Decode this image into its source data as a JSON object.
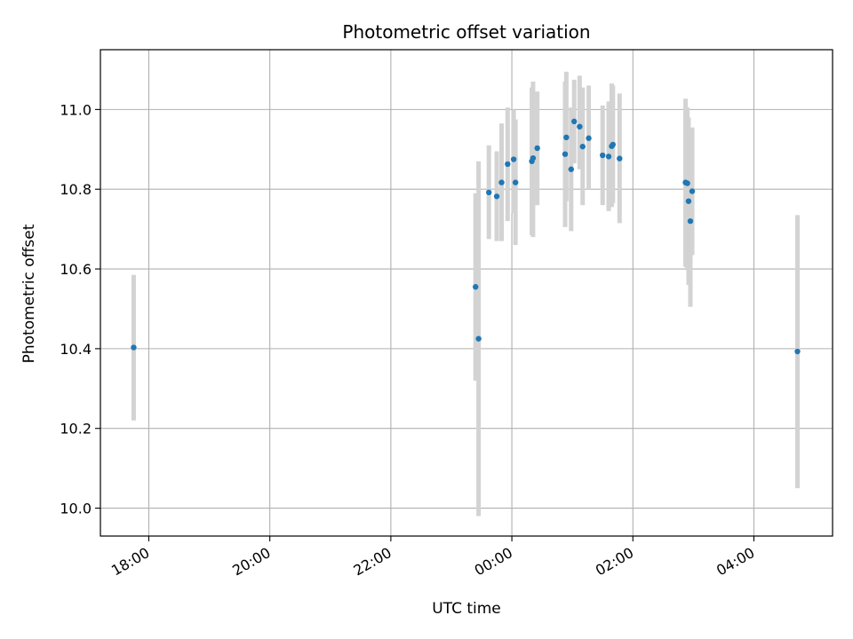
{
  "chart_data": {
    "type": "scatter",
    "title": "Photometric offset variation",
    "xlabel": "UTC time",
    "ylabel": "Photometric offset",
    "grid": true,
    "x_unit": "hours since 00:00 UTC",
    "xlim": [
      -6.8,
      5.3
    ],
    "ylim": [
      9.93,
      11.15
    ],
    "x_ticks": [
      {
        "value": -6,
        "label": "18:00"
      },
      {
        "value": -4,
        "label": "20:00"
      },
      {
        "value": -2,
        "label": "22:00"
      },
      {
        "value": 0,
        "label": "00:00"
      },
      {
        "value": 2,
        "label": "02:00"
      },
      {
        "value": 4,
        "label": "04:00"
      }
    ],
    "y_ticks": [
      {
        "value": 10.0,
        "label": "10.0"
      },
      {
        "value": 10.2,
        "label": "10.2"
      },
      {
        "value": 10.4,
        "label": "10.4"
      },
      {
        "value": 10.6,
        "label": "10.6"
      },
      {
        "value": 10.8,
        "label": "10.8"
      },
      {
        "value": 11.0,
        "label": "11.0"
      }
    ],
    "colors": {
      "point": "#1f77b4",
      "errorbar": "#d3d3d3",
      "grid": "#b0b0b0"
    },
    "points": [
      {
        "x": -6.25,
        "y": 10.403,
        "lo": 10.22,
        "hi": 10.585
      },
      {
        "x": -0.6,
        "y": 10.555,
        "lo": 10.32,
        "hi": 10.79
      },
      {
        "x": -0.55,
        "y": 10.425,
        "lo": 9.98,
        "hi": 10.87
      },
      {
        "x": -0.38,
        "y": 10.792,
        "lo": 10.675,
        "hi": 10.91
      },
      {
        "x": -0.25,
        "y": 10.782,
        "lo": 10.67,
        "hi": 10.895
      },
      {
        "x": -0.17,
        "y": 10.817,
        "lo": 10.67,
        "hi": 10.965
      },
      {
        "x": -0.07,
        "y": 10.863,
        "lo": 10.72,
        "hi": 11.005
      },
      {
        "x": 0.03,
        "y": 10.875,
        "lo": 10.74,
        "hi": 11.0
      },
      {
        "x": 0.06,
        "y": 10.817,
        "lo": 10.66,
        "hi": 10.975
      },
      {
        "x": 0.33,
        "y": 10.87,
        "lo": 10.685,
        "hi": 11.055
      },
      {
        "x": 0.35,
        "y": 10.878,
        "lo": 10.68,
        "hi": 11.07
      },
      {
        "x": 0.42,
        "y": 10.903,
        "lo": 10.76,
        "hi": 11.045
      },
      {
        "x": 0.88,
        "y": 10.888,
        "lo": 10.705,
        "hi": 11.07
      },
      {
        "x": 0.9,
        "y": 10.93,
        "lo": 10.77,
        "hi": 11.095
      },
      {
        "x": 0.98,
        "y": 10.85,
        "lo": 10.695,
        "hi": 11.005
      },
      {
        "x": 1.03,
        "y": 10.97,
        "lo": 10.865,
        "hi": 11.075
      },
      {
        "x": 1.12,
        "y": 10.957,
        "lo": 10.85,
        "hi": 11.085
      },
      {
        "x": 1.17,
        "y": 10.907,
        "lo": 10.76,
        "hi": 11.055
      },
      {
        "x": 1.27,
        "y": 10.928,
        "lo": 10.8,
        "hi": 11.06
      },
      {
        "x": 1.5,
        "y": 10.885,
        "lo": 10.76,
        "hi": 11.01
      },
      {
        "x": 1.6,
        "y": 10.882,
        "lo": 10.745,
        "hi": 11.02
      },
      {
        "x": 1.65,
        "y": 10.908,
        "lo": 10.755,
        "hi": 11.065
      },
      {
        "x": 1.67,
        "y": 10.912,
        "lo": 10.765,
        "hi": 11.06
      },
      {
        "x": 1.78,
        "y": 10.877,
        "lo": 10.715,
        "hi": 11.04
      },
      {
        "x": 2.87,
        "y": 10.817,
        "lo": 10.605,
        "hi": 11.027
      },
      {
        "x": 2.9,
        "y": 10.815,
        "lo": 10.6,
        "hi": 11.005
      },
      {
        "x": 2.92,
        "y": 10.77,
        "lo": 10.56,
        "hi": 10.98
      },
      {
        "x": 2.95,
        "y": 10.72,
        "lo": 10.505,
        "hi": 10.935
      },
      {
        "x": 2.98,
        "y": 10.795,
        "lo": 10.635,
        "hi": 10.955
      },
      {
        "x": 4.72,
        "y": 10.393,
        "lo": 10.05,
        "hi": 10.735
      }
    ]
  }
}
